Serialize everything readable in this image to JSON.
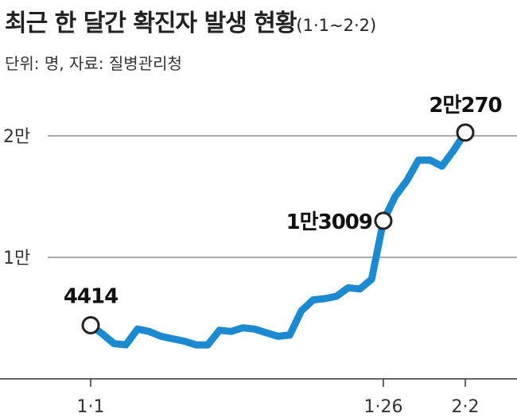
{
  "title": "최근 한 달간 확진자 발생 현황",
  "title_range": "(1·1~2·2)",
  "subtitle": "단위: 명, 자료: 질병관리청",
  "colors": {
    "line": "#1c8ad0",
    "grid": "#555555",
    "marker_fill": "#ffffff",
    "marker_stroke": "#222222"
  },
  "chart_data": {
    "type": "line",
    "title": "최근 한 달간 확진자 발생 현황",
    "ylim": [
      0,
      26000
    ],
    "y_ticks": [
      {
        "value": 10000,
        "label": "1만"
      },
      {
        "value": 20000,
        "label": "2만"
      }
    ],
    "x_ticks": [
      {
        "value": 1,
        "label": "1·1"
      },
      {
        "value": 26,
        "label": "1·26"
      },
      {
        "value": 33,
        "label": "2·2"
      }
    ],
    "x": [
      1,
      2,
      3,
      4,
      5,
      6,
      7,
      8,
      9,
      10,
      11,
      12,
      13,
      14,
      15,
      16,
      17,
      18,
      19,
      20,
      21,
      22,
      23,
      24,
      25,
      26,
      27,
      28,
      29,
      30,
      31,
      32,
      33
    ],
    "values": [
      4414,
      3700,
      2900,
      2800,
      4100,
      3900,
      3500,
      3300,
      3100,
      2800,
      2800,
      4000,
      3900,
      4200,
      4100,
      3800,
      3500,
      3600,
      5600,
      6500,
      6600,
      6800,
      7500,
      7400,
      8200,
      13009,
      15000,
      16300,
      18000,
      18000,
      17500,
      18800,
      20270
    ],
    "annotations": [
      {
        "x": 1,
        "value": 4414,
        "label": "4414"
      },
      {
        "x": 26,
        "value": 13009,
        "label": "1만3009"
      },
      {
        "x": 33,
        "value": 20270,
        "label": "2만270"
      }
    ]
  }
}
